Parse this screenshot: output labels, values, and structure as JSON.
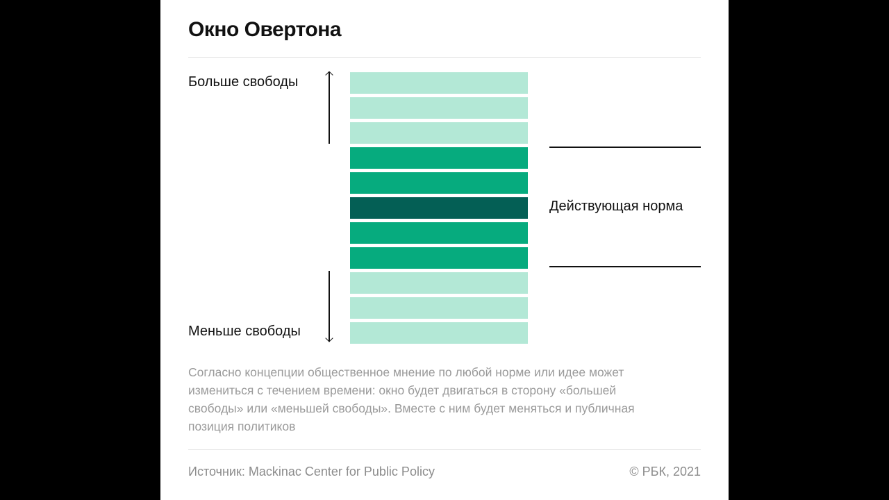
{
  "title": "Окно Овертона",
  "labels": {
    "more_freedom": "Больше свободы",
    "less_freedom": "Меньше свободы",
    "current_norm": "Действующая норма"
  },
  "bars": [
    {
      "level": "outside",
      "color": "#b3e8d6"
    },
    {
      "level": "outside",
      "color": "#b3e8d6"
    },
    {
      "level": "outside",
      "color": "#b3e8d6"
    },
    {
      "level": "window",
      "color": "#06ab7e"
    },
    {
      "level": "window",
      "color": "#06ab7e"
    },
    {
      "level": "current",
      "color": "#045f55"
    },
    {
      "level": "window",
      "color": "#06ab7e"
    },
    {
      "level": "window",
      "color": "#06ab7e"
    },
    {
      "level": "outside",
      "color": "#b3e8d6"
    },
    {
      "level": "outside",
      "color": "#b3e8d6"
    },
    {
      "level": "outside",
      "color": "#b3e8d6"
    }
  ],
  "caption": "Согласно концепции общественное мнение по любой норме или идее может измениться с течением времени: окно будет двигаться в сторону «большей свободы» или «меньшей свободы». Вместе с ним будет меняться и публичная позиция политиков",
  "footer": {
    "source": "Источник: Mackinac Center for Public Policy",
    "copyright": "© РБК, 2021"
  }
}
